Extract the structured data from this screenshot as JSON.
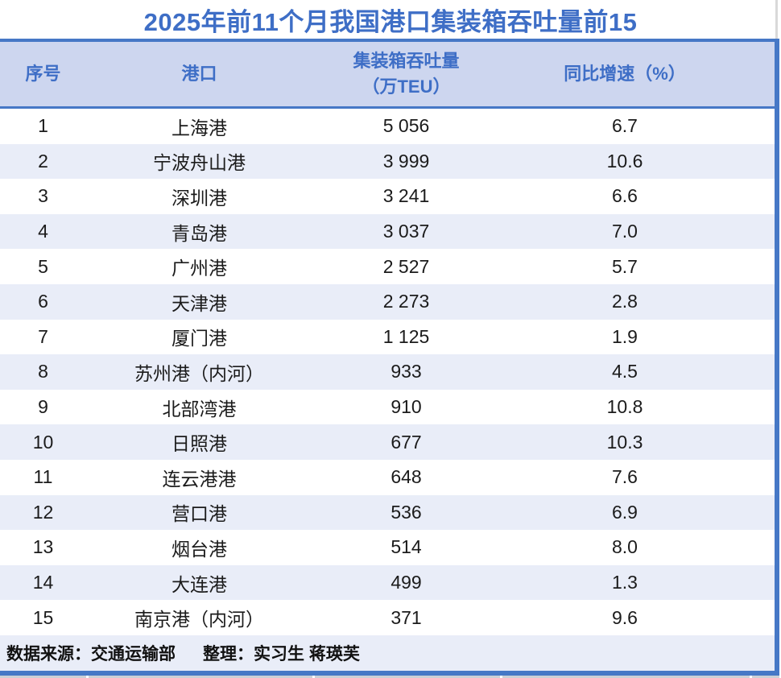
{
  "title": "2025年前11个月我国港口集装箱吞吐量前15",
  "table": {
    "header": {
      "rank": "序号",
      "port": "港口",
      "throughput_line1": "集装箱吞吐量",
      "throughput_line2": "（万TEU）",
      "growth": "同比增速（%）"
    },
    "rows": [
      {
        "rank": "1",
        "port": "上海港",
        "throughput": "5 056",
        "growth": "6.7"
      },
      {
        "rank": "2",
        "port": "宁波舟山港",
        "throughput": "3 999",
        "growth": "10.6"
      },
      {
        "rank": "3",
        "port": "深圳港",
        "throughput": "3 241",
        "growth": "6.6"
      },
      {
        "rank": "4",
        "port": "青岛港",
        "throughput": "3 037",
        "growth": "7.0"
      },
      {
        "rank": "5",
        "port": "广州港",
        "throughput": "2 527",
        "growth": "5.7"
      },
      {
        "rank": "6",
        "port": "天津港",
        "throughput": "2 273",
        "growth": "2.8"
      },
      {
        "rank": "7",
        "port": "厦门港",
        "throughput": "1 125",
        "growth": "1.9"
      },
      {
        "rank": "8",
        "port": "苏州港（内河）",
        "throughput": "933",
        "growth": "4.5"
      },
      {
        "rank": "9",
        "port": "北部湾港",
        "throughput": "910",
        "growth": "10.8"
      },
      {
        "rank": "10",
        "port": "日照港",
        "throughput": "677",
        "growth": "10.3"
      },
      {
        "rank": "11",
        "port": "连云港港",
        "throughput": "648",
        "growth": "7.6"
      },
      {
        "rank": "12",
        "port": "营口港",
        "throughput": "536",
        "growth": "6.9"
      },
      {
        "rank": "13",
        "port": "烟台港",
        "throughput": "514",
        "growth": "8.0"
      },
      {
        "rank": "14",
        "port": "大连港",
        "throughput": "499",
        "growth": "1.3"
      },
      {
        "rank": "15",
        "port": "南京港（内河）",
        "throughput": "371",
        "growth": "9.6"
      }
    ]
  },
  "footer": {
    "source": "数据来源：交通运输部",
    "editor": "整理：实习生 蒋瑛芙"
  },
  "colors": {
    "title_blue": "#3e6ec6",
    "header_bg": "#cdd6ef",
    "header_text": "#3e6ec6",
    "border_blue": "#4678c6",
    "stripe_bg": "#e9edf8",
    "row_text": "#1b1b1b"
  },
  "chart_data": {
    "type": "table",
    "title": "2025年前11个月我国港口集装箱吞吐量前15",
    "columns": [
      "序号",
      "港口",
      "集装箱吞吐量（万TEU）",
      "同比增速（%）"
    ],
    "rows": [
      [
        1,
        "上海港",
        5056,
        6.7
      ],
      [
        2,
        "宁波舟山港",
        3999,
        10.6
      ],
      [
        3,
        "深圳港",
        3241,
        6.6
      ],
      [
        4,
        "青岛港",
        3037,
        7.0
      ],
      [
        5,
        "广州港",
        2527,
        5.7
      ],
      [
        6,
        "天津港",
        2273,
        2.8
      ],
      [
        7,
        "厦门港",
        1125,
        1.9
      ],
      [
        8,
        "苏州港（内河）",
        933,
        4.5
      ],
      [
        9,
        "北部湾港",
        910,
        10.8
      ],
      [
        10,
        "日照港",
        677,
        10.3
      ],
      [
        11,
        "连云港港",
        648,
        7.6
      ],
      [
        12,
        "营口港",
        536,
        6.9
      ],
      [
        13,
        "烟台港",
        514,
        8.0
      ],
      [
        14,
        "大连港",
        499,
        1.3
      ],
      [
        15,
        "南京港（内河）",
        371,
        9.6
      ]
    ],
    "notes": "数据来源：交通运输部　整理：实习生 蒋瑛芙",
    "layout": "zebra-striped table, header light periwinkle with blue bold text, blue rule under title and above footer rule"
  }
}
